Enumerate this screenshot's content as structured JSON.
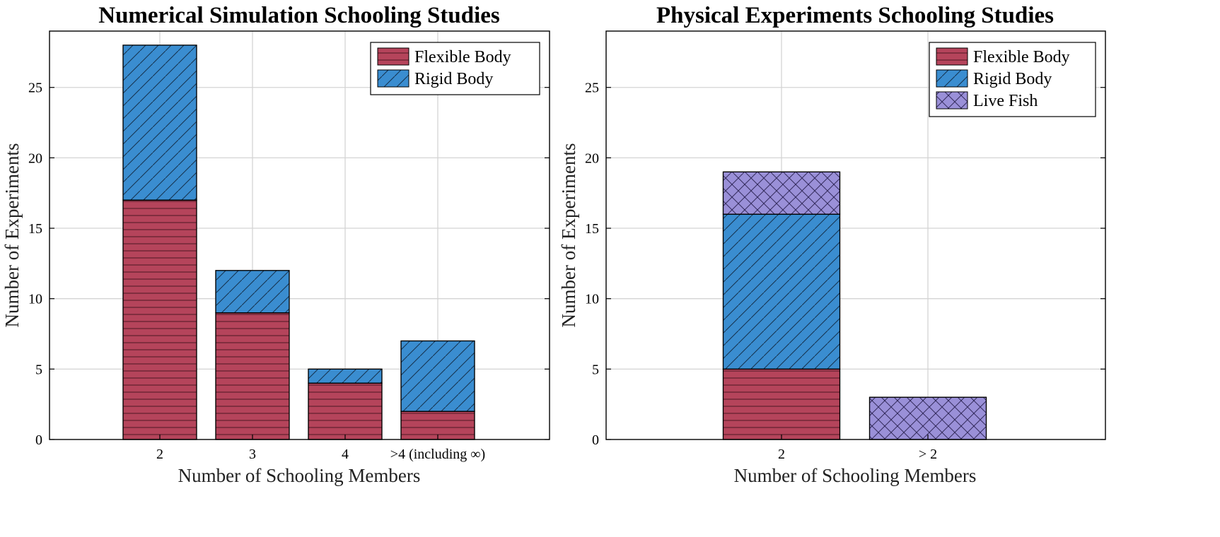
{
  "colors": {
    "flexible_body": "#b5445b",
    "rigid_body": "#3a8dd0",
    "live_fish": "#9a90d8"
  },
  "chart_data": [
    {
      "type": "bar",
      "stacked": true,
      "title": "Numerical Simulation Schooling Studies",
      "xlabel": "Number of Schooling Members",
      "ylabel": "Number of Experiments",
      "categories": [
        "2",
        "3",
        "4",
        ">4 (including ∞)"
      ],
      "ylim": [
        0,
        29
      ],
      "yticks": [
        0,
        5,
        10,
        15,
        20,
        25
      ],
      "grid": true,
      "legend_position": "top-right",
      "series": [
        {
          "name": "Flexible Body",
          "values": [
            17,
            9,
            4,
            2
          ],
          "color": "#b5445b",
          "hatch": "horizontal"
        },
        {
          "name": "Rigid Body",
          "values": [
            11,
            3,
            1,
            5
          ],
          "color": "#3a8dd0",
          "hatch": "diagonal"
        }
      ]
    },
    {
      "type": "bar",
      "stacked": true,
      "title": "Physical Experiments Schooling Studies",
      "xlabel": "Number of Schooling Members",
      "ylabel": "Number of Experiments",
      "categories": [
        "2",
        "> 2"
      ],
      "ylim": [
        0,
        29
      ],
      "yticks": [
        0,
        5,
        10,
        15,
        20,
        25
      ],
      "grid": true,
      "legend_position": "top-right",
      "series": [
        {
          "name": "Flexible Body",
          "values": [
            5,
            0
          ],
          "color": "#b5445b",
          "hatch": "horizontal"
        },
        {
          "name": "Rigid Body",
          "values": [
            11,
            0
          ],
          "color": "#3a8dd0",
          "hatch": "diagonal"
        },
        {
          "name": "Live Fish",
          "values": [
            3,
            3
          ],
          "color": "#9a90d8",
          "hatch": "crosshatch"
        }
      ]
    }
  ]
}
